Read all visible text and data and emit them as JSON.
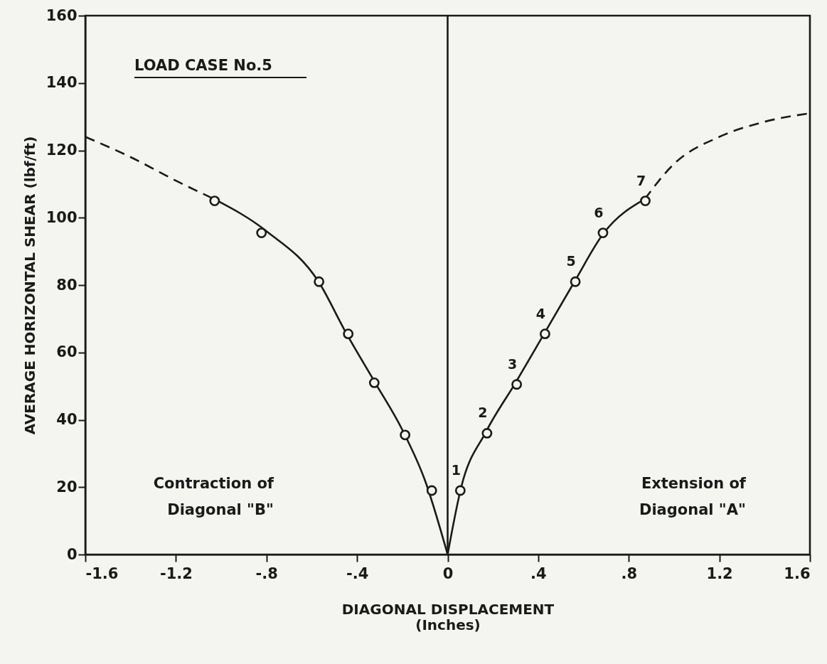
{
  "chart_data": {
    "type": "line",
    "xlabel": "DIAGONAL DISPLACEMENT\n(Inches)",
    "ylabel": "AVERAGE HORIZONTAL SHEAR (lbf/ft)",
    "xlim": [
      -1.6,
      1.6
    ],
    "xticks": [
      {
        "value": -1.6,
        "label": "-1.6"
      },
      {
        "value": -1.2,
        "label": "-1.2"
      },
      {
        "value": -0.8,
        "label": "-.8"
      },
      {
        "value": -0.4,
        "label": "-.4"
      },
      {
        "value": 0,
        "label": "0"
      },
      {
        "value": 0.4,
        "label": ".4"
      },
      {
        "value": 0.8,
        "label": ".8"
      },
      1.2,
      1.6
    ],
    "ylim": [
      0,
      160
    ],
    "yticks": [
      0,
      20,
      40,
      60,
      80,
      100,
      120,
      140,
      160
    ],
    "grid": false,
    "series": [
      {
        "line_style": "solid",
        "color": "#1a1a1a",
        "x": [
          0,
          0.06,
          0.17,
          0.3,
          0.43,
          0.56,
          0.69,
          0.87
        ],
        "values": [
          0,
          20,
          36.5,
          51,
          66,
          81,
          95.5,
          105.5
        ]
      },
      {
        "line_style": "dashed",
        "color": "#1a1a1a",
        "x": [
          0.87,
          1.0,
          1.2,
          1.4,
          1.6
        ],
        "values": [
          105.5,
          116,
          124,
          128.5,
          131
        ]
      },
      {
        "line_style": "solid",
        "color": "#1a1a1a",
        "x": [
          0,
          -0.1,
          -0.2,
          -0.32,
          -0.45,
          -0.57,
          -0.8,
          -1.03
        ],
        "values": [
          0,
          22,
          37,
          51,
          66,
          81,
          96,
          105.5
        ]
      },
      {
        "line_style": "dashed",
        "color": "#1a1a1a",
        "x": [
          -1.03,
          -1.2,
          -1.4,
          -1.6
        ],
        "values": [
          105.5,
          111,
          118,
          124
        ]
      },
      {
        "type": "scatter",
        "marker": "circle",
        "color": "#1a1a1a",
        "x": [
          0.056,
          0.174,
          0.305,
          0.43,
          0.564,
          0.686,
          0.873
        ],
        "values": [
          19,
          36,
          50.5,
          65.5,
          81,
          95.5,
          105
        ]
      },
      {
        "type": "scatter",
        "marker": "circle",
        "color": "#1a1a1a",
        "x": [
          -0.07,
          -0.188,
          -0.324,
          -0.439,
          -0.568,
          -0.822,
          -1.029
        ],
        "values": [
          19,
          35.5,
          51,
          65.5,
          81,
          95.5,
          105
        ]
      }
    ],
    "ref_lines": [
      {
        "axis": "x",
        "value": 0,
        "color": "#1a1a1a"
      }
    ],
    "annotations": [
      "LOAD CASE No.5",
      "Contraction of\nDiagonal \"B\"",
      "Extension of\nDiagonal \"A\"",
      {
        "text": "1",
        "x": 0.056,
        "y": 19
      },
      {
        "text": "2",
        "x": 0.174,
        "y": 36
      },
      {
        "text": "3",
        "x": 0.305,
        "y": 50.5
      },
      {
        "text": "4",
        "x": 0.43,
        "y": 65.5
      },
      {
        "text": "5",
        "x": 0.564,
        "y": 81
      },
      {
        "text": "6",
        "x": 0.686,
        "y": 95.5
      },
      {
        "text": "7",
        "x": 0.873,
        "y": 105
      }
    ]
  }
}
